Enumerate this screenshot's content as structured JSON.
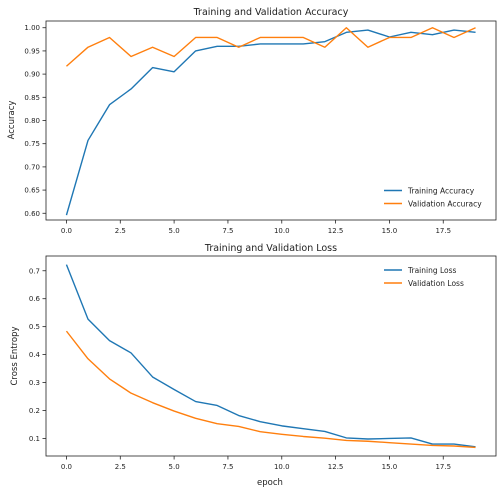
{
  "chart_data": [
    {
      "type": "line",
      "title": "Training and Validation Accuracy",
      "xlabel": "",
      "ylabel": "Accuracy",
      "xlim": [
        -0.95,
        19.95
      ],
      "ylim": [
        0.5855,
        1.0145
      ],
      "xticks": [
        0.0,
        2.5,
        5.0,
        7.5,
        10.0,
        12.5,
        15.0,
        17.5
      ],
      "xtick_labels": [
        "0.0",
        "2.5",
        "5.0",
        "7.5",
        "10.0",
        "12.5",
        "15.0",
        "17.5"
      ],
      "yticks": [
        0.6,
        0.65,
        0.7,
        0.75,
        0.8,
        0.85,
        0.9,
        0.95,
        1.0
      ],
      "ytick_labels": [
        "0.60",
        "0.65",
        "0.70",
        "0.75",
        "0.80",
        "0.85",
        "0.90",
        "0.95",
        "1.00"
      ],
      "grid": false,
      "legend_position": "lower-right",
      "x": [
        0,
        1,
        2,
        3,
        4,
        5,
        6,
        7,
        8,
        9,
        10,
        11,
        12,
        13,
        14,
        15,
        16,
        17,
        18,
        19
      ],
      "series": [
        {
          "name": "Training Accuracy",
          "color": "#1f77b4",
          "values": [
            0.596,
            0.757,
            0.834,
            0.868,
            0.914,
            0.905,
            0.95,
            0.96,
            0.96,
            0.965,
            0.965,
            0.965,
            0.97,
            0.99,
            0.995,
            0.98,
            0.99,
            0.985,
            0.995,
            0.99
          ]
        },
        {
          "name": "Validation Accuracy",
          "color": "#ff7f0e",
          "values": [
            0.917,
            0.958,
            0.979,
            0.938,
            0.958,
            0.938,
            0.979,
            0.979,
            0.958,
            0.979,
            0.979,
            0.979,
            0.958,
            1.0,
            0.958,
            0.979,
            0.979,
            1.0,
            0.979,
            1.0
          ]
        }
      ]
    },
    {
      "type": "line",
      "title": "Training and Validation Loss",
      "xlabel": "epoch",
      "ylabel": "Cross Entropy",
      "xlim": [
        -0.95,
        19.95
      ],
      "ylim": [
        0.0372,
        0.7528
      ],
      "xticks": [
        0.0,
        2.5,
        5.0,
        7.5,
        10.0,
        12.5,
        15.0,
        17.5
      ],
      "xtick_labels": [
        "0.0",
        "2.5",
        "5.0",
        "7.5",
        "10.0",
        "12.5",
        "15.0",
        "17.5"
      ],
      "yticks": [
        0.1,
        0.2,
        0.3,
        0.4,
        0.5,
        0.6,
        0.7
      ],
      "ytick_labels": [
        "0.1",
        "0.2",
        "0.3",
        "0.4",
        "0.5",
        "0.6",
        "0.7"
      ],
      "grid": false,
      "legend_position": "upper-right",
      "x": [
        0,
        1,
        2,
        3,
        4,
        5,
        6,
        7,
        8,
        9,
        10,
        11,
        12,
        13,
        14,
        15,
        16,
        17,
        18,
        19
      ],
      "series": [
        {
          "name": "Training Loss",
          "color": "#1f77b4",
          "values": [
            0.722,
            0.527,
            0.45,
            0.406,
            0.32,
            0.275,
            0.232,
            0.218,
            0.182,
            0.16,
            0.145,
            0.135,
            0.125,
            0.102,
            0.098,
            0.1,
            0.102,
            0.08,
            0.08,
            0.07
          ]
        },
        {
          "name": "Validation Loss",
          "color": "#ff7f0e",
          "values": [
            0.484,
            0.385,
            0.313,
            0.262,
            0.228,
            0.198,
            0.172,
            0.153,
            0.143,
            0.124,
            0.115,
            0.107,
            0.101,
            0.093,
            0.09,
            0.085,
            0.08,
            0.075,
            0.073,
            0.068
          ]
        }
      ]
    }
  ]
}
